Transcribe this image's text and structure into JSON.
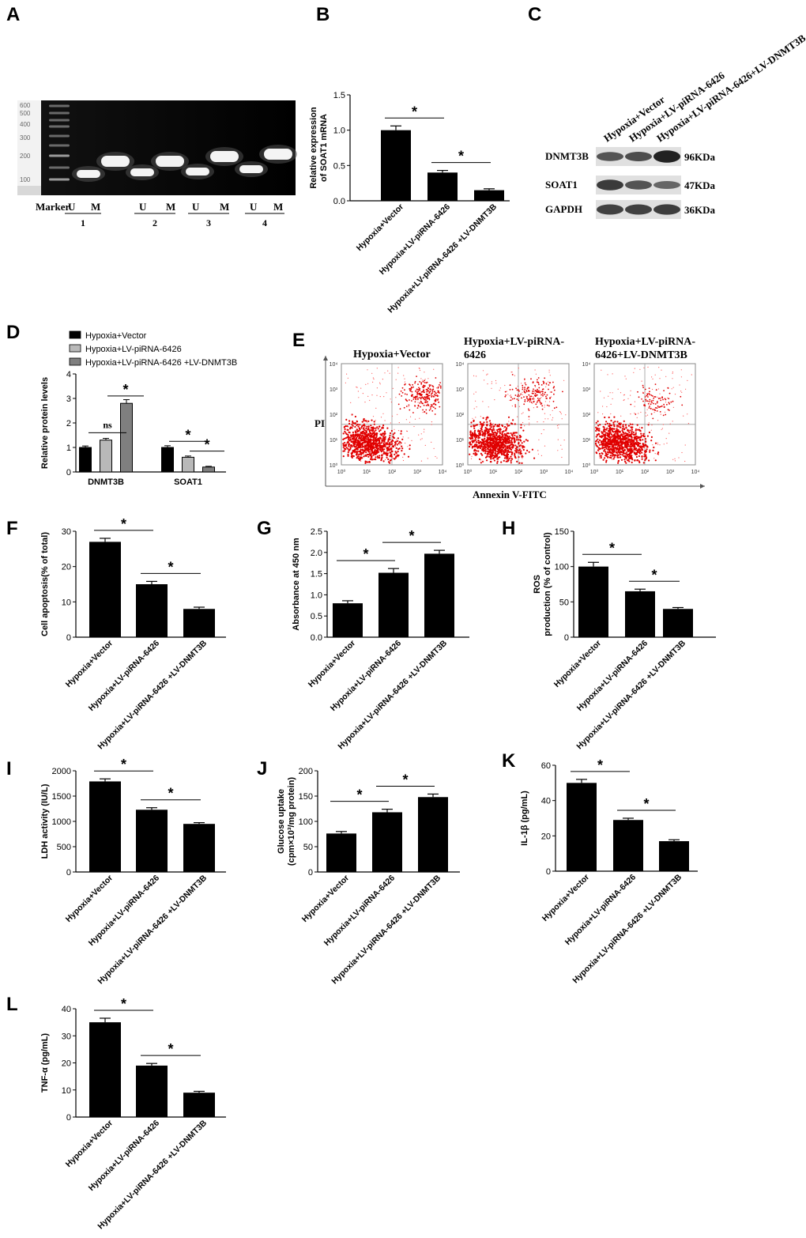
{
  "panel_letters": {
    "A": "A",
    "B": "B",
    "C": "C",
    "D": "D",
    "E": "E",
    "F": "F",
    "G": "G",
    "H": "H",
    "I": "I",
    "J": "J",
    "K": "K",
    "L": "L"
  },
  "gel": {
    "ladder_labels": [
      "600",
      "500",
      "400",
      "300",
      "200",
      "100"
    ],
    "marker_label": "Marker",
    "lane_labels": [
      "U",
      "M",
      "U",
      "M",
      "U",
      "M",
      "U",
      "M"
    ],
    "sample_labels": [
      "1",
      "2",
      "3",
      "4"
    ]
  },
  "groups": [
    "Hypoxia+Vector",
    "Hypoxia+LV-piRNA-6426",
    "Hypoxia+LV-piRNA-6426 +LV-DNMT3B"
  ],
  "western": {
    "lane_headers": [
      "Hypoxia+Vector",
      "Hypoxia+LV-piRNA-6426",
      "Hypoxia+LV-piRNA-6426+LV-DNMT3B"
    ],
    "proteins": [
      "DNMT3B",
      "SOAT1",
      "GAPDH"
    ],
    "sizes": [
      "96KDa",
      "47KDa",
      "36KDa"
    ]
  },
  "flow": {
    "titles": [
      "Hypoxia+Vector",
      "Hypoxia+LV-piRNA-\n6426",
      "Hypoxia+LV-piRNA-\n6426+LV-DNMT3B"
    ],
    "ylabel": "PI",
    "xlabel": "Annexin V-FITC",
    "ticks": [
      "10⁰",
      "10¹",
      "10²",
      "10³",
      "10⁴"
    ]
  },
  "star": "*",
  "ns": "ns",
  "chart_data": [
    {
      "panel": "B",
      "type": "bar",
      "categories": [
        "Hypoxia+Vector",
        "Hypoxia+LV-piRNA-6426",
        "Hypoxia+LV-piRNA-6426 +LV-DNMT3B"
      ],
      "values": [
        1.0,
        0.4,
        0.15
      ],
      "errors": [
        0.06,
        0.03,
        0.02
      ],
      "ylabel": "Relative expression\nof SOAT1 mRNA",
      "ylim": [
        0,
        1.5
      ],
      "yticks": [
        "0.0",
        "0.5",
        "1.0",
        "1.5"
      ],
      "significance": [
        "*",
        "*"
      ]
    },
    {
      "panel": "D",
      "type": "bar",
      "categories": [
        "DNMT3B",
        "SOAT1"
      ],
      "series": [
        {
          "name": "Hypoxia+Vector",
          "values": [
            1.0,
            1.0
          ],
          "errors": [
            0.06,
            0.07
          ],
          "color": "#000000"
        },
        {
          "name": "Hypoxia+LV-piRNA-6426",
          "values": [
            1.3,
            0.6
          ],
          "errors": [
            0.07,
            0.05
          ],
          "color": "#b9b9b9"
        },
        {
          "name": "Hypoxia+LV-piRNA-6426 +LV-DNMT3B",
          "values": [
            2.8,
            0.2
          ],
          "errors": [
            0.15,
            0.03
          ],
          "color": "#7f7f7f"
        }
      ],
      "ylabel": "Relative protein levels",
      "ylim": [
        0,
        4
      ],
      "yticks": [
        "0",
        "1",
        "2",
        "3",
        "4"
      ],
      "significance": [
        "ns",
        "*",
        "*",
        "*"
      ]
    },
    {
      "panel": "F",
      "type": "bar",
      "categories": [
        "Hypoxia+Vector",
        "Hypoxia+LV-piRNA-6426",
        "Hypoxia+LV-piRNA-6426 +LV-DNMT3B"
      ],
      "values": [
        27,
        15,
        8
      ],
      "errors": [
        1.0,
        0.8,
        0.5
      ],
      "ylabel": "Cell apoptosis(% of total)",
      "ylim": [
        0,
        30
      ],
      "yticks": [
        "0",
        "10",
        "20",
        "30"
      ],
      "significance": [
        "*",
        "*"
      ]
    },
    {
      "panel": "G",
      "type": "bar",
      "categories": [
        "Hypoxia+Vector",
        "Hypoxia+LV-piRNA-6426",
        "Hypoxia+LV-piRNA-6426 +LV-DNMT3B"
      ],
      "values": [
        0.8,
        1.52,
        1.97
      ],
      "errors": [
        0.06,
        0.1,
        0.08
      ],
      "ylabel": "Absorbance at 450 nm",
      "ylim": [
        0,
        2.5
      ],
      "yticks": [
        "0.0",
        "0.5",
        "1.0",
        "1.5",
        "2.0",
        "2.5"
      ],
      "significance": [
        "*",
        "*"
      ]
    },
    {
      "panel": "H",
      "type": "bar",
      "categories": [
        "Hypoxia+Vector",
        "Hypoxia+LV-piRNA-6426",
        "Hypoxia+LV-piRNA-6426 +LV-DNMT3B"
      ],
      "values": [
        100,
        65,
        40
      ],
      "errors": [
        6,
        3,
        2
      ],
      "ylabel": "ROS\nproduction (% of control)",
      "ylim": [
        0,
        150
      ],
      "yticks": [
        "0",
        "50",
        "100",
        "150"
      ],
      "significance": [
        "*",
        "*"
      ]
    },
    {
      "panel": "I",
      "type": "bar",
      "categories": [
        "Hypoxia+Vector",
        "Hypoxia+LV-piRNA-6426",
        "Hypoxia+LV-piRNA-6426 +LV-DNMT3B"
      ],
      "values": [
        1790,
        1230,
        950
      ],
      "errors": [
        50,
        40,
        25
      ],
      "ylabel": "LDH activity (IU/L)",
      "ylim": [
        0,
        2000
      ],
      "yticks": [
        "0",
        "500",
        "1000",
        "1500",
        "2000"
      ],
      "significance": [
        "*",
        "*"
      ]
    },
    {
      "panel": "J",
      "type": "bar",
      "categories": [
        "Hypoxia+Vector",
        "Hypoxia+LV-piRNA-6426",
        "Hypoxia+LV-piRNA-6426 +LV-DNMT3B"
      ],
      "values": [
        76,
        118,
        148
      ],
      "errors": [
        4,
        6,
        6
      ],
      "ylabel": "Glucose uptake\n(cpm×10³/mg protein)",
      "ylim": [
        0,
        200
      ],
      "yticks": [
        "0",
        "50",
        "100",
        "150",
        "200"
      ],
      "significance": [
        "*",
        "*"
      ]
    },
    {
      "panel": "K",
      "type": "bar",
      "categories": [
        "Hypoxia+Vector",
        "Hypoxia+LV-piRNA-6426",
        "Hypoxia+LV-piRNA-6426 +LV-DNMT3B"
      ],
      "values": [
        50,
        29,
        17
      ],
      "errors": [
        2,
        1,
        0.8
      ],
      "ylabel": "IL-1β (pg/mL)",
      "ylim": [
        0,
        60
      ],
      "yticks": [
        "0",
        "20",
        "40",
        "60"
      ],
      "significance": [
        "*",
        "*"
      ]
    },
    {
      "panel": "L",
      "type": "bar",
      "categories": [
        "Hypoxia+Vector",
        "Hypoxia+LV-piRNA-6426",
        "Hypoxia+LV-piRNA-6426 +LV-DNMT3B"
      ],
      "values": [
        35,
        19,
        9
      ],
      "errors": [
        1.5,
        0.8,
        0.5
      ],
      "ylabel": "TNF-α (pg/mL)",
      "ylim": [
        0,
        40
      ],
      "yticks": [
        "0",
        "10",
        "20",
        "30",
        "40"
      ],
      "significance": [
        "*",
        "*"
      ]
    }
  ]
}
